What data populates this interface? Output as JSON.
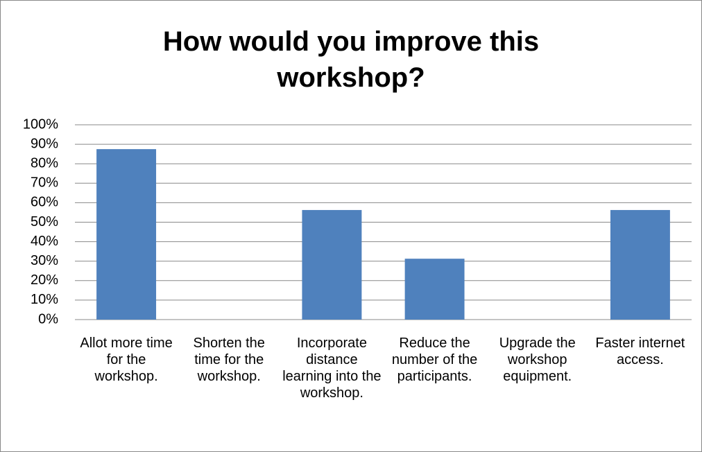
{
  "chart_data": {
    "type": "bar",
    "title": "How would you improve this workshop?",
    "categories": [
      "Allot more time for the workshop.",
      "Shorten the time for the workshop.",
      "Incorporate distance learning into the workshop.",
      "Reduce the number of the participants.",
      "Upgrade the workshop equipment.",
      "Faster internet access."
    ],
    "values": [
      87.5,
      0,
      56.25,
      31.25,
      0,
      56.25
    ],
    "color": "#4f81bd",
    "ylim": [
      0,
      100
    ],
    "yticks": [
      {
        "value": 0,
        "label": "0%"
      },
      {
        "value": 10,
        "label": "10%"
      },
      {
        "value": 20,
        "label": "20%"
      },
      {
        "value": 30,
        "label": "30%"
      },
      {
        "value": 40,
        "label": "40%"
      },
      {
        "value": 50,
        "label": "50%"
      },
      {
        "value": 60,
        "label": "60%"
      },
      {
        "value": 70,
        "label": "70%"
      },
      {
        "value": 80,
        "label": "80%"
      },
      {
        "value": 90,
        "label": "90%"
      },
      {
        "value": 100,
        "label": "100%"
      }
    ],
    "grid": true
  }
}
